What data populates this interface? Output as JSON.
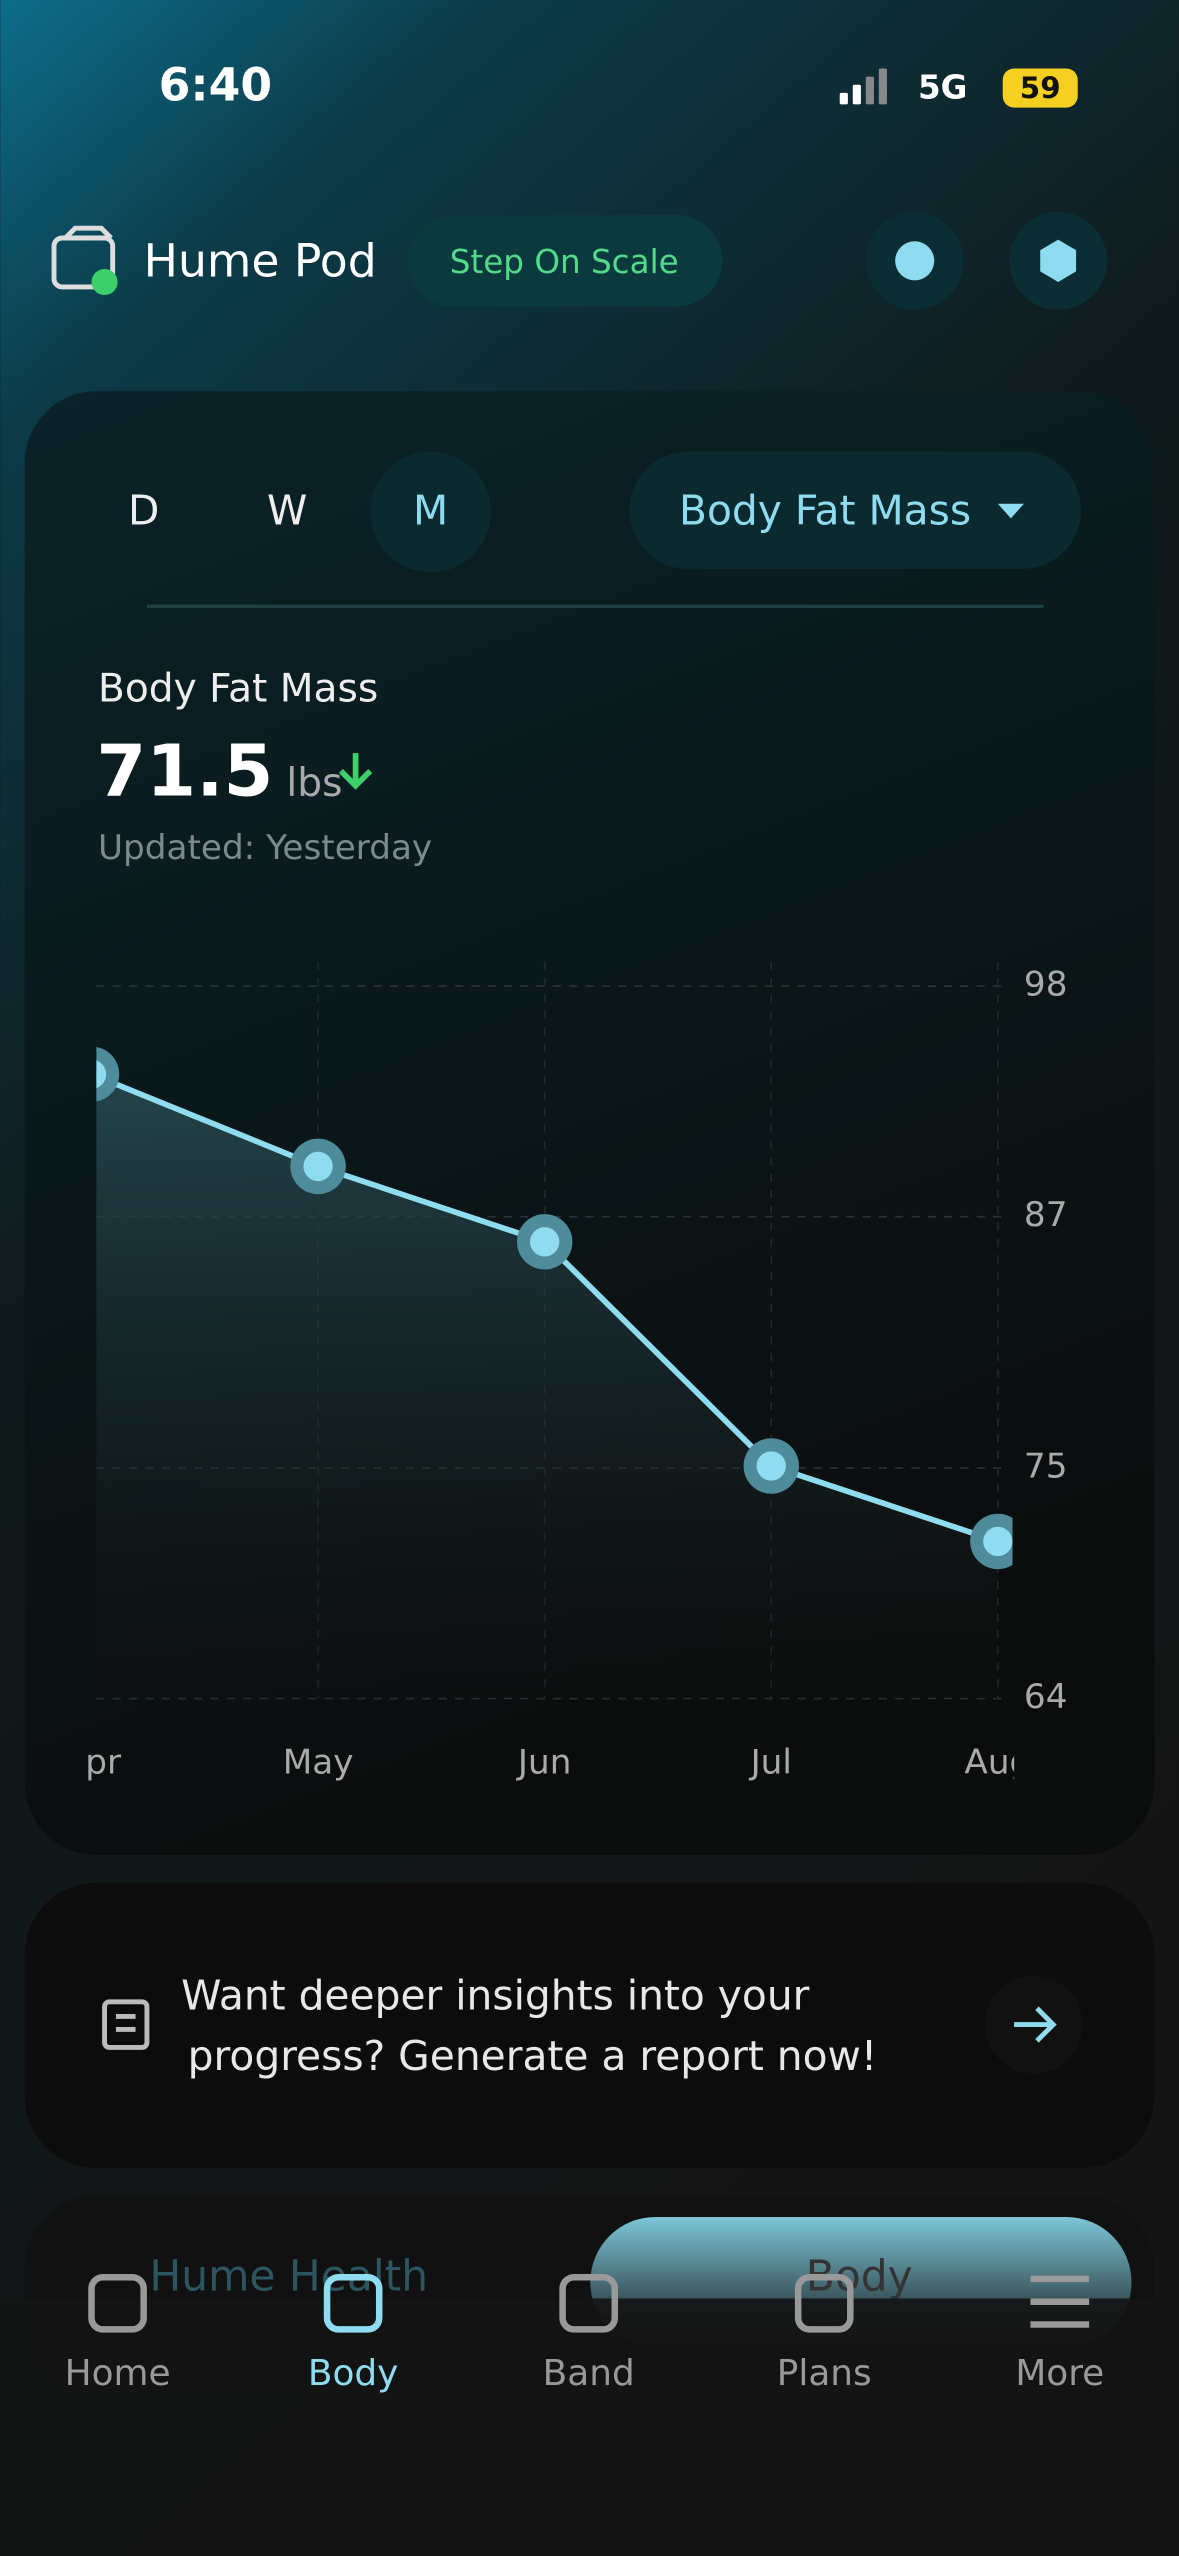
{
  "status_bar": {
    "time": "6:40",
    "network": "5G",
    "battery": "59"
  },
  "header": {
    "title": "Hume Pod",
    "button": "Step On Scale"
  },
  "tabs": [
    "D",
    "W",
    "M"
  ],
  "active_tab": 2,
  "metric_dropdown": "Body Fat Mass",
  "summary": {
    "label": "Body Fat Mass",
    "value": 71.5,
    "unit": "lbs",
    "updated": "Updated: Yesterday"
  },
  "chart_data": {
    "type": "line",
    "categories": [
      "Apr",
      "May",
      "Jun",
      "Jul",
      "Aug"
    ],
    "values": [
      93.8,
      89.4,
      85.8,
      75.1,
      71.5
    ],
    "color": "#8fdcf0",
    "ylim": [
      64,
      98
    ],
    "yticks": [
      98,
      87,
      75,
      64
    ],
    "grid": true
  },
  "insight": {
    "lines": [
      "Want deeper insights into your",
      "progress? Generate a report now!"
    ]
  },
  "background_tabs": [
    "Hume Health",
    "Body"
  ],
  "nav": {
    "items": [
      "Home",
      "Body",
      "Band",
      "Plans",
      "More"
    ],
    "active": 1
  }
}
